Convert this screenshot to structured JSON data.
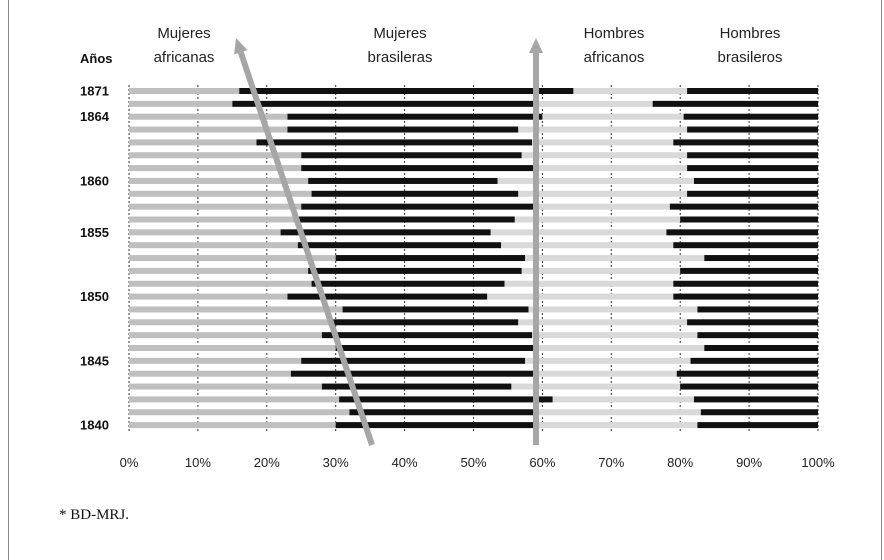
{
  "chart_data": {
    "type": "bar",
    "stacked": true,
    "orientation": "horizontal",
    "years_label": "Años",
    "x_ticks": [
      "0%",
      "10%",
      "20%",
      "30%",
      "40%",
      "50%",
      "60%",
      "70%",
      "80%",
      "90%",
      "100%"
    ],
    "xlim": [
      0,
      100
    ],
    "grid": "dotted vertical",
    "series": [
      {
        "name": "Mujeres africanas",
        "color": "#bfbfbf"
      },
      {
        "name": "Mujeres brasileras",
        "color": "#111111"
      },
      {
        "name": "Hombres africanos",
        "color": "#d9d9d9"
      },
      {
        "name": "Hombres brasileros",
        "color": "#111111"
      }
    ],
    "rows": [
      {
        "year": "1871",
        "values": [
          16,
          48.5,
          16.5,
          19
        ]
      },
      {
        "year": "",
        "values": [
          15,
          44.5,
          16.5,
          24
        ]
      },
      {
        "year": "1864",
        "values": [
          23,
          37,
          20.5,
          19.5
        ]
      },
      {
        "year": "",
        "values": [
          23,
          33.5,
          24.5,
          19
        ]
      },
      {
        "year": "",
        "values": [
          18.5,
          40,
          20.5,
          21
        ]
      },
      {
        "year": "",
        "values": [
          25,
          32,
          24,
          19
        ]
      },
      {
        "year": "",
        "values": [
          25,
          34,
          22,
          19
        ]
      },
      {
        "year": "1860",
        "values": [
          26,
          27.5,
          28.5,
          18
        ]
      },
      {
        "year": "",
        "values": [
          26.5,
          30,
          24.5,
          19
        ]
      },
      {
        "year": "",
        "values": [
          25,
          34,
          19.5,
          21.5
        ]
      },
      {
        "year": "",
        "values": [
          24.5,
          31.5,
          24,
          20
        ]
      },
      {
        "year": "1855",
        "values": [
          22,
          30.5,
          25.5,
          22
        ]
      },
      {
        "year": "",
        "values": [
          24.5,
          29.5,
          25,
          21
        ]
      },
      {
        "year": "",
        "values": [
          30,
          27.5,
          26,
          16.5
        ]
      },
      {
        "year": "",
        "values": [
          26,
          31,
          23,
          20
        ]
      },
      {
        "year": "",
        "values": [
          26.5,
          28,
          24.5,
          21
        ]
      },
      {
        "year": "1850",
        "values": [
          23,
          29,
          27,
          21
        ]
      },
      {
        "year": "",
        "values": [
          31,
          27,
          24.5,
          17.5
        ]
      },
      {
        "year": "",
        "values": [
          29,
          27.5,
          24.5,
          19
        ]
      },
      {
        "year": "",
        "values": [
          28,
          30.5,
          24,
          17.5
        ]
      },
      {
        "year": "",
        "values": [
          30,
          29,
          24.5,
          16.5
        ]
      },
      {
        "year": "1845",
        "values": [
          25,
          32.5,
          24,
          18.5
        ]
      },
      {
        "year": "",
        "values": [
          23.5,
          36,
          20,
          20.5
        ]
      },
      {
        "year": "",
        "values": [
          28,
          27.5,
          24.5,
          20
        ]
      },
      {
        "year": "",
        "values": [
          30.5,
          31,
          20.5,
          18
        ]
      },
      {
        "year": "",
        "values": [
          32,
          27.5,
          23.5,
          17
        ]
      },
      {
        "year": "1840",
        "values": [
          30,
          29.5,
          23,
          17.5
        ]
      }
    ]
  },
  "headers": [
    {
      "line1": "Mujeres",
      "line2": "africanas"
    },
    {
      "line1": "Mujeres",
      "line2": "brasileras"
    },
    {
      "line1": "Hombres",
      "line2": "africanos"
    },
    {
      "line1": "Hombres",
      "line2": "brasileros"
    }
  ],
  "footnote": "* BD-MRJ."
}
